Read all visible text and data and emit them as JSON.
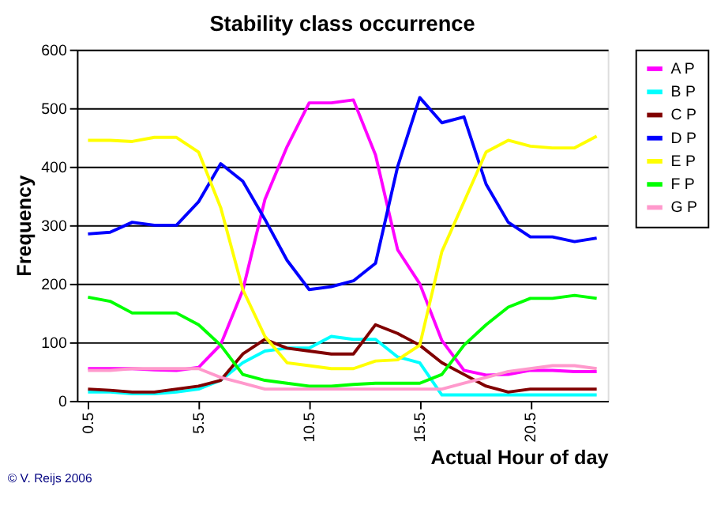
{
  "chart_data": {
    "type": "line",
    "title": "Stability class occurrence",
    "xlabel": "Actual Hour of day",
    "ylabel": "Frequency",
    "x": [
      0.5,
      1.5,
      2.5,
      3.5,
      4.5,
      5.5,
      6.5,
      7.5,
      8.5,
      9.5,
      10.5,
      11.5,
      12.5,
      13.5,
      14.5,
      15.5,
      16.5,
      17.5,
      18.5,
      19.5,
      20.5,
      21.5,
      22.5,
      23.5
    ],
    "xlim": [
      0,
      24
    ],
    "xticks": [
      0.5,
      5.5,
      10.5,
      15.5,
      20.5
    ],
    "ylim": [
      0,
      600
    ],
    "yticks": [
      0,
      100,
      200,
      300,
      400,
      500,
      600
    ],
    "grid": "y",
    "legend": "right",
    "marker": "none",
    "line_style": "solid",
    "annotations": [
      "© V. Reijs 2006"
    ],
    "series": [
      {
        "name": "A P",
        "color": "#ff00ff",
        "values": [
          55,
          55,
          55,
          53,
          52,
          57,
          96,
          189,
          344,
          434,
          509,
          509,
          514,
          420,
          258,
          200,
          103,
          52,
          44,
          45,
          52,
          52,
          50,
          50
        ]
      },
      {
        "name": "B P",
        "color": "#00ffff",
        "values": [
          15,
          15,
          12,
          12,
          15,
          20,
          35,
          65,
          85,
          90,
          90,
          110,
          105,
          105,
          75,
          65,
          10,
          10,
          10,
          10,
          10,
          10,
          10,
          10
        ]
      },
      {
        "name": "C P",
        "color": "#800000",
        "values": [
          20,
          18,
          15,
          15,
          20,
          25,
          35,
          80,
          105,
          90,
          85,
          80,
          80,
          130,
          115,
          95,
          65,
          45,
          25,
          15,
          20,
          20,
          20,
          20
        ]
      },
      {
        "name": "D P",
        "color": "#0000ff",
        "values": [
          285,
          288,
          305,
          300,
          300,
          340,
          405,
          375,
          310,
          240,
          190,
          195,
          205,
          235,
          400,
          518,
          475,
          485,
          370,
          305,
          280,
          280,
          272,
          278
        ]
      },
      {
        "name": "E P",
        "color": "#ffff00",
        "values": [
          445,
          445,
          443,
          450,
          450,
          425,
          330,
          190,
          110,
          65,
          60,
          55,
          55,
          68,
          70,
          95,
          255,
          340,
          425,
          445,
          435,
          432,
          432,
          452
        ]
      },
      {
        "name": "F P",
        "color": "#00ff00",
        "values": [
          177,
          170,
          150,
          150,
          150,
          130,
          95,
          45,
          35,
          30,
          25,
          25,
          28,
          30,
          30,
          30,
          45,
          95,
          130,
          160,
          175,
          175,
          180,
          175
        ]
      },
      {
        "name": "G P",
        "color": "#ff99cc",
        "values": [
          52,
          52,
          55,
          55,
          55,
          55,
          40,
          30,
          20,
          20,
          20,
          20,
          20,
          20,
          20,
          20,
          20,
          30,
          40,
          50,
          55,
          60,
          60,
          55
        ]
      }
    ]
  }
}
